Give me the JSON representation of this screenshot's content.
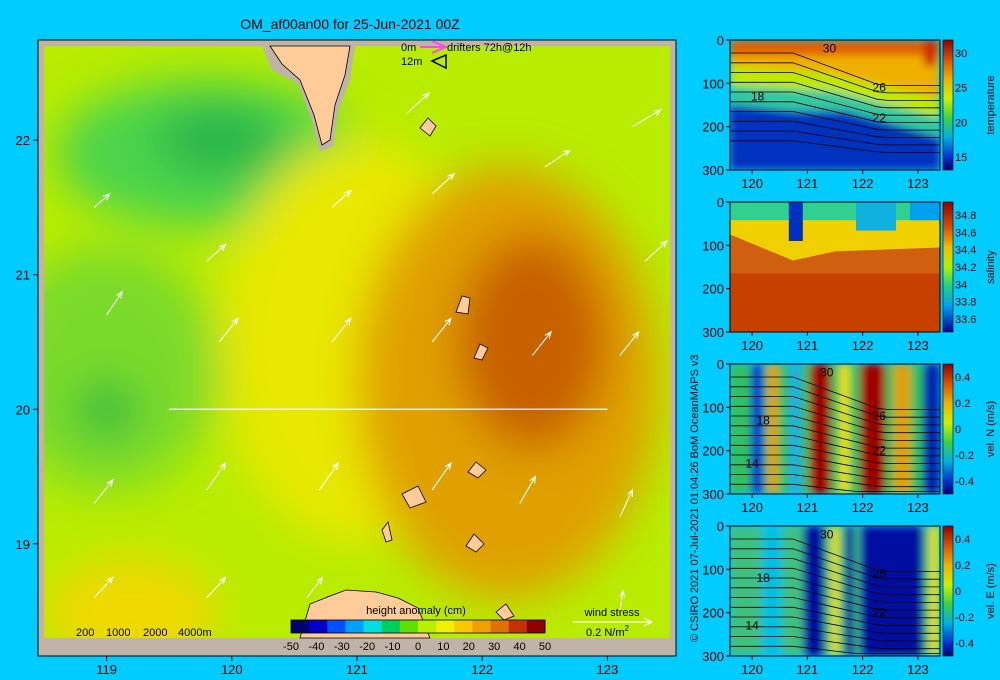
{
  "title": "OM_af00an00 for 25-Jun-2021 00Z",
  "credit": "© CSIRO 2021   07-Jul-2021 01:04:26 BoM OceanMAPS v3",
  "colors": {
    "background": "#00ccff",
    "land": "#ffcc99",
    "shelf": "#c0b4a8"
  },
  "chart_data": [
    {
      "type": "heatmap",
      "name": "map",
      "xlim": [
        118.5,
        123.5
      ],
      "ylim": [
        18.3,
        22.7
      ],
      "x_ticks": [
        "119",
        "120",
        "121",
        "122",
        "123"
      ],
      "y_ticks": [
        "19",
        "20",
        "21",
        "22"
      ],
      "section_line": {
        "lat": 20.0,
        "lon_start": 119.5,
        "lon_end": 123.0
      },
      "legend_drifters": {
        "label_0m": "0m",
        "label_12m": "12m",
        "text": "drifters 72h@12h"
      },
      "depth_labels": [
        "200",
        "1000",
        "2000",
        "4000m"
      ],
      "colorbar": {
        "title": "height anomaly (cm)",
        "ticks": [
          "-50",
          "-40",
          "-30",
          "-20",
          "-10",
          "0",
          "10",
          "20",
          "30",
          "40",
          "50"
        ],
        "colors": [
          "#000070",
          "#0000c8",
          "#0050ff",
          "#00a0ff",
          "#00e0e0",
          "#00d060",
          "#60e000",
          "#b8f000",
          "#f0f000",
          "#f8c800",
          "#f0a000",
          "#e07000",
          "#c83000",
          "#900000"
        ]
      },
      "wind_stress": {
        "title": "wind stress",
        "scale": "0.2 N/m",
        "superscript": "2"
      },
      "ssh_field": [
        {
          "name": "ne-green",
          "lon": 119.8,
          "lat": 21.9,
          "rx": 1.2,
          "ry": 0.55,
          "color": "#4cd44c"
        },
        {
          "name": "nw-green",
          "lon": 119.0,
          "lat": 20.3,
          "rx": 0.9,
          "ry": 0.9,
          "color": "#7ada2c"
        },
        {
          "name": "w-green-dark",
          "lon": 119.0,
          "lat": 20.0,
          "rx": 0.25,
          "ry": 0.2,
          "color": "#20b840"
        },
        {
          "name": "ne-dark",
          "lon": 119.9,
          "lat": 22.0,
          "rx": 0.5,
          "ry": 0.25,
          "color": "#28b44c"
        },
        {
          "name": "center-yellow",
          "lon": 121.0,
          "lat": 20.5,
          "rx": 1.1,
          "ry": 1.5,
          "color": "#e8e800"
        },
        {
          "name": "east-orange",
          "lon": 122.2,
          "lat": 20.2,
          "rx": 1.2,
          "ry": 1.6,
          "color": "#e0a000"
        },
        {
          "name": "east-dark",
          "lon": 122.4,
          "lat": 20.5,
          "rx": 0.6,
          "ry": 0.8,
          "color": "#c86000"
        },
        {
          "name": "sw-yellow",
          "lon": 119.2,
          "lat": 18.5,
          "rx": 0.7,
          "ry": 0.4,
          "color": "#f0d800"
        }
      ],
      "wind_arrows": [
        {
          "lon": 118.9,
          "lat": 21.5,
          "u": 0.25,
          "v": 0.2
        },
        {
          "lon": 119.8,
          "lat": 21.1,
          "u": 0.3,
          "v": 0.25
        },
        {
          "lon": 120.8,
          "lat": 21.5,
          "u": 0.3,
          "v": 0.25
        },
        {
          "lon": 121.6,
          "lat": 21.6,
          "u": 0.35,
          "v": 0.3
        },
        {
          "lon": 122.5,
          "lat": 21.8,
          "u": 0.4,
          "v": 0.25
        },
        {
          "lon": 123.3,
          "lat": 21.1,
          "u": 0.35,
          "v": 0.3
        },
        {
          "lon": 121.6,
          "lat": 20.5,
          "u": 0.3,
          "v": 0.35
        },
        {
          "lon": 122.4,
          "lat": 20.4,
          "u": 0.3,
          "v": 0.35
        },
        {
          "lon": 123.1,
          "lat": 20.4,
          "u": 0.3,
          "v": 0.35
        },
        {
          "lon": 120.8,
          "lat": 20.5,
          "u": 0.3,
          "v": 0.35
        },
        {
          "lon": 119.9,
          "lat": 20.5,
          "u": 0.3,
          "v": 0.35
        },
        {
          "lon": 119.0,
          "lat": 20.7,
          "u": 0.25,
          "v": 0.35
        },
        {
          "lon": 118.9,
          "lat": 19.3,
          "u": 0.3,
          "v": 0.35
        },
        {
          "lon": 119.8,
          "lat": 19.4,
          "u": 0.3,
          "v": 0.4
        },
        {
          "lon": 120.7,
          "lat": 19.4,
          "u": 0.3,
          "v": 0.4
        },
        {
          "lon": 121.6,
          "lat": 19.4,
          "u": 0.3,
          "v": 0.4
        },
        {
          "lon": 122.3,
          "lat": 19.3,
          "u": 0.25,
          "v": 0.4
        },
        {
          "lon": 123.1,
          "lat": 19.2,
          "u": 0.2,
          "v": 0.4
        },
        {
          "lon": 118.9,
          "lat": 18.6,
          "u": 0.3,
          "v": 0.3
        },
        {
          "lon": 119.8,
          "lat": 18.6,
          "u": 0.3,
          "v": 0.3
        },
        {
          "lon": 120.6,
          "lat": 18.6,
          "u": 0.25,
          "v": 0.3
        },
        {
          "lon": 123.1,
          "lat": 18.5,
          "u": 0.05,
          "v": 0.3
        },
        {
          "lon": 121.4,
          "lat": 22.2,
          "u": 0.35,
          "v": 0.3
        },
        {
          "lon": 123.2,
          "lat": 22.1,
          "u": 0.45,
          "v": 0.25
        }
      ]
    },
    {
      "type": "heatmap",
      "name": "temperature",
      "ylabel": "temperature",
      "xlim": [
        119.6,
        123.4
      ],
      "ylim": [
        300,
        0
      ],
      "x_ticks": [
        "120",
        "121",
        "122",
        "123"
      ],
      "y_ticks": [
        "0",
        "100",
        "200",
        "300"
      ],
      "colorbar_ticks": [
        "30",
        "25",
        "20",
        "15"
      ],
      "contour_labels": [
        {
          "text": "30",
          "x": 121.4,
          "y": 20
        },
        {
          "text": "26",
          "x": 122.3,
          "y": 110
        },
        {
          "text": "18",
          "x": 120.1,
          "y": 130
        },
        {
          "text": "22",
          "x": 122.3,
          "y": 180
        }
      ]
    },
    {
      "type": "heatmap",
      "name": "salinity",
      "ylabel": "salinity",
      "xlim": [
        119.6,
        123.4
      ],
      "ylim": [
        300,
        0
      ],
      "x_ticks": [
        "120",
        "121",
        "122",
        "123"
      ],
      "y_ticks": [
        "0",
        "100",
        "200",
        "300"
      ],
      "colorbar_ticks": [
        "34.8",
        "34.6",
        "34.4",
        "34.2",
        "34",
        "33.8",
        "33.6"
      ],
      "contour_labels": []
    },
    {
      "type": "heatmap",
      "name": "vel-n",
      "ylabel": "vel. N (m/s)",
      "xlim": [
        119.6,
        123.4
      ],
      "ylim": [
        300,
        0
      ],
      "x_ticks": [
        "120",
        "121",
        "122",
        "123"
      ],
      "y_ticks": [
        "0",
        "100",
        "200",
        "300"
      ],
      "colorbar_ticks": [
        "0.4",
        "0.2",
        "0",
        "-0.2",
        "-0.4"
      ],
      "contour_labels": [
        {
          "text": "30",
          "x": 121.35,
          "y": 20
        },
        {
          "text": "18",
          "x": 120.2,
          "y": 130
        },
        {
          "text": "14",
          "x": 120.0,
          "y": 230
        },
        {
          "text": "26",
          "x": 122.3,
          "y": 120
        },
        {
          "text": "22",
          "x": 122.3,
          "y": 200
        }
      ]
    },
    {
      "type": "heatmap",
      "name": "vel-e",
      "ylabel": "vel. E (m/s)",
      "xlim": [
        119.6,
        123.4
      ],
      "ylim": [
        300,
        0
      ],
      "x_ticks": [
        "120",
        "121",
        "122",
        "123"
      ],
      "y_ticks": [
        "0",
        "100",
        "200",
        "300"
      ],
      "colorbar_ticks": [
        "0.4",
        "0.2",
        "0",
        "-0.2",
        "-0.4"
      ],
      "contour_labels": [
        {
          "text": "30",
          "x": 121.35,
          "y": 20
        },
        {
          "text": "18",
          "x": 120.2,
          "y": 120
        },
        {
          "text": "14",
          "x": 120.0,
          "y": 230
        },
        {
          "text": "26",
          "x": 122.3,
          "y": 110
        },
        {
          "text": "22",
          "x": 122.3,
          "y": 200
        }
      ]
    }
  ]
}
